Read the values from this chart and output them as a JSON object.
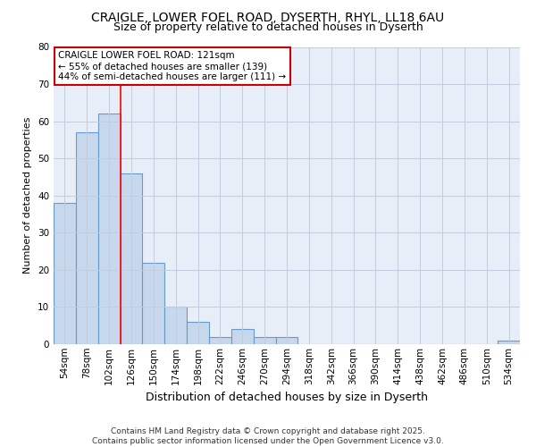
{
  "title_line1": "CRAIGLE, LOWER FOEL ROAD, DYSERTH, RHYL, LL18 6AU",
  "title_line2": "Size of property relative to detached houses in Dyserth",
  "xlabel": "Distribution of detached houses by size in Dyserth",
  "ylabel": "Number of detached properties",
  "categories": [
    "54sqm",
    "78sqm",
    "102sqm",
    "126sqm",
    "150sqm",
    "174sqm",
    "198sqm",
    "222sqm",
    "246sqm",
    "270sqm",
    "294sqm",
    "318sqm",
    "342sqm",
    "366sqm",
    "390sqm",
    "414sqm",
    "438sqm",
    "462sqm",
    "486sqm",
    "510sqm",
    "534sqm"
  ],
  "values": [
    38,
    57,
    62,
    46,
    22,
    10,
    6,
    2,
    4,
    2,
    2,
    0,
    0,
    0,
    0,
    0,
    0,
    0,
    0,
    0,
    1
  ],
  "bar_color": "#c8d8ec",
  "bar_edge_color": "#6699cc",
  "plot_bg_color": "#e8eef8",
  "fig_bg_color": "#ffffff",
  "grid_color": "#c0cce0",
  "red_line_x": 3.0,
  "annotation_text": "CRAIGLE LOWER FOEL ROAD: 121sqm\n← 55% of detached houses are smaller (139)\n44% of semi-detached houses are larger (111) →",
  "annotation_box_color": "#ffffff",
  "annotation_box_edge": "#cc0000",
  "footer_line1": "Contains HM Land Registry data © Crown copyright and database right 2025.",
  "footer_line2": "Contains public sector information licensed under the Open Government Licence v3.0.",
  "ylim": [
    0,
    80
  ],
  "yticks": [
    0,
    10,
    20,
    30,
    40,
    50,
    60,
    70,
    80
  ],
  "title_fontsize": 10,
  "subtitle_fontsize": 9,
  "ylabel_fontsize": 8,
  "xlabel_fontsize": 9,
  "tick_fontsize": 7.5,
  "ann_fontsize": 7.5,
  "footer_fontsize": 6.5
}
